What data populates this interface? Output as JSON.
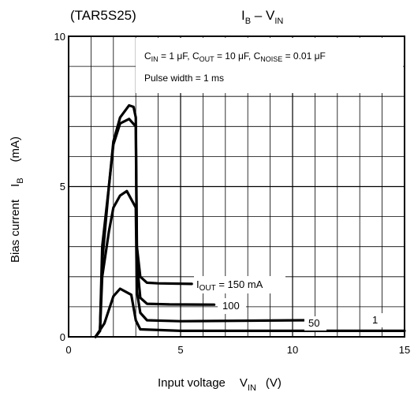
{
  "chart_data": {
    "type": "line",
    "title_left": "(TAR5S25)",
    "title_main": {
      "base": "I",
      "sub": "B",
      "sep": " – ",
      "base2": "V",
      "sub2": "IN"
    },
    "xlabel": {
      "text": "Input voltage",
      "sym": "V",
      "sub": "IN",
      "unit": "(V)"
    },
    "ylabel": {
      "text": "Bias current",
      "sym": "I",
      "sub": "B",
      "unit": "(mA)"
    },
    "xlim": [
      0,
      15
    ],
    "ylim": [
      0,
      10
    ],
    "x_ticks": [
      "0",
      "5",
      "10",
      "15"
    ],
    "y_ticks": [
      "0",
      "5",
      "10"
    ],
    "grid": true,
    "x_minor_divisions": 15,
    "y_minor_divisions": 10,
    "conditions": {
      "line1": {
        "c1": "C",
        "c1sub": "IN",
        "c1val": " = 1 μF, ",
        "c2": "C",
        "c2sub": "OUT",
        "c2val": " = 10 μF, ",
        "c3": "C",
        "c3sub": "NOISE",
        "c3val": " = 0.01 μF"
      },
      "line2": "Pulse width = 1 ms"
    },
    "series": [
      {
        "label": {
          "base": "I",
          "sub": "OUT",
          "rest": " = 150 mA"
        },
        "points": [
          [
            1.2,
            0
          ],
          [
            1.4,
            0.2
          ],
          [
            1.5,
            3.0
          ],
          [
            1.8,
            5.0
          ],
          [
            2.0,
            6.5
          ],
          [
            2.3,
            7.3
          ],
          [
            2.7,
            7.7
          ],
          [
            2.9,
            7.65
          ],
          [
            3.0,
            7.3
          ],
          [
            3.05,
            3.0
          ],
          [
            3.2,
            2.0
          ],
          [
            3.5,
            1.8
          ],
          [
            4.0,
            1.78
          ],
          [
            5.5,
            1.76
          ]
        ]
      },
      {
        "label": {
          "base": "",
          "sub": "",
          "rest": "100"
        },
        "points": [
          [
            1.2,
            0
          ],
          [
            1.4,
            0.2
          ],
          [
            1.5,
            2.5
          ],
          [
            1.8,
            5.0
          ],
          [
            2.0,
            6.4
          ],
          [
            2.3,
            7.1
          ],
          [
            2.7,
            7.25
          ],
          [
            3.0,
            7.0
          ],
          [
            3.05,
            2.5
          ],
          [
            3.2,
            1.3
          ],
          [
            3.5,
            1.1
          ],
          [
            4.5,
            1.08
          ],
          [
            6.5,
            1.07
          ]
        ]
      },
      {
        "label": {
          "base": "",
          "sub": "",
          "rest": "50"
        },
        "points": [
          [
            1.2,
            0
          ],
          [
            1.4,
            0.2
          ],
          [
            1.5,
            2.0
          ],
          [
            1.8,
            3.5
          ],
          [
            2.0,
            4.3
          ],
          [
            2.3,
            4.7
          ],
          [
            2.6,
            4.85
          ],
          [
            3.0,
            4.3
          ],
          [
            3.05,
            1.5
          ],
          [
            3.2,
            0.8
          ],
          [
            3.5,
            0.55
          ],
          [
            5.0,
            0.52
          ],
          [
            10.5,
            0.55
          ]
        ]
      },
      {
        "label": {
          "base": "",
          "sub": "",
          "rest": "1"
        },
        "points": [
          [
            1.2,
            0
          ],
          [
            1.6,
            0.45
          ],
          [
            2.0,
            1.35
          ],
          [
            2.3,
            1.6
          ],
          [
            2.8,
            1.4
          ],
          [
            3.0,
            0.55
          ],
          [
            3.2,
            0.25
          ],
          [
            5.0,
            0.2
          ],
          [
            10.0,
            0.2
          ],
          [
            15.0,
            0.2
          ]
        ]
      }
    ]
  }
}
